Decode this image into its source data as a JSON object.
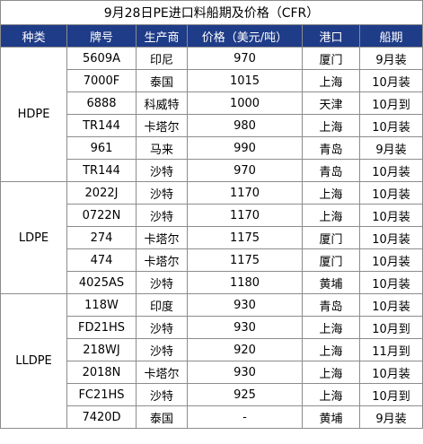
{
  "title": "9月28日PE进口料船期及价格（CFR）",
  "headers": [
    "种类",
    "牌号",
    "生产商",
    "价格（美元/吨）",
    "港口",
    "船期"
  ],
  "groups": [
    {
      "category": "HDPE",
      "rows": [
        {
          "grade": "5609A",
          "producer": "印尼",
          "price": "970",
          "port": "厦门",
          "shipping": "9月装"
        },
        {
          "grade": "7000F",
          "producer": "泰国",
          "price": "1015",
          "port": "上海",
          "shipping": "10月装"
        },
        {
          "grade": "6888",
          "producer": "科威特",
          "price": "1000",
          "port": "天津",
          "shipping": "10月到"
        },
        {
          "grade": "TR144",
          "producer": "卡塔尔",
          "price": "980",
          "port": "上海",
          "shipping": "10月装"
        },
        {
          "grade": "961",
          "producer": "马来",
          "price": "990",
          "port": "青岛",
          "shipping": "9月装"
        },
        {
          "grade": "TR144",
          "producer": "沙特",
          "price": "970",
          "port": "青岛",
          "shipping": "10月装"
        }
      ]
    },
    {
      "category": "LDPE",
      "rows": [
        {
          "grade": "2022J",
          "producer": "沙特",
          "price": "1170",
          "port": "上海",
          "shipping": "10月装"
        },
        {
          "grade": "0722N",
          "producer": "沙特",
          "price": "1170",
          "port": "上海",
          "shipping": "10月装"
        },
        {
          "grade": "274",
          "producer": "卡塔尔",
          "price": "1175",
          "port": "厦门",
          "shipping": "10月装"
        },
        {
          "grade": "474",
          "producer": "卡塔尔",
          "price": "1175",
          "port": "厦门",
          "shipping": "10月装"
        },
        {
          "grade": "4025AS",
          "producer": "沙特",
          "price": "1180",
          "port": "黄埔",
          "shipping": "10月装"
        }
      ]
    },
    {
      "category": "LLDPE",
      "rows": [
        {
          "grade": "118W",
          "producer": "印度",
          "price": "930",
          "port": "青岛",
          "shipping": "10月装"
        },
        {
          "grade": "FD21HS",
          "producer": "沙特",
          "price": "930",
          "port": "上海",
          "shipping": "10月到"
        },
        {
          "grade": "218WJ",
          "producer": "沙特",
          "price": "920",
          "port": "上海",
          "shipping": "11月到"
        },
        {
          "grade": "2018N",
          "producer": "卡塔尔",
          "price": "930",
          "port": "上海",
          "shipping": "10月装"
        },
        {
          "grade": "FC21HS",
          "producer": "沙特",
          "price": "925",
          "port": "上海",
          "shipping": "10月到"
        },
        {
          "grade": "7420D",
          "producer": "泰国",
          "price": "-",
          "port": "黄埔",
          "shipping": "9月装"
        }
      ]
    }
  ]
}
